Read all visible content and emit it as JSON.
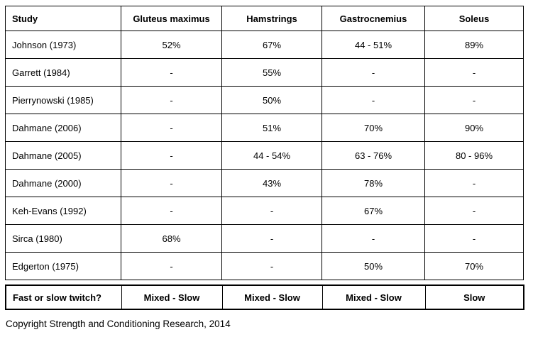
{
  "table": {
    "columns": [
      "Study",
      "Gluteus maximus",
      "Hamstrings",
      "Gastrocnemius",
      "Soleus"
    ],
    "rows": [
      {
        "study": "Johnson (1973)",
        "values": [
          "52%",
          "67%",
          "44 - 51%",
          "89%"
        ]
      },
      {
        "study": "Garrett (1984)",
        "values": [
          "-",
          "55%",
          "-",
          "-"
        ]
      },
      {
        "study": "Pierrynowski (1985)",
        "values": [
          "-",
          "50%",
          "-",
          "-"
        ]
      },
      {
        "study": "Dahmane (2006)",
        "values": [
          "-",
          "51%",
          "70%",
          "90%"
        ]
      },
      {
        "study": "Dahmane (2005)",
        "values": [
          "-",
          "44 - 54%",
          "63 - 76%",
          "80 - 96%"
        ]
      },
      {
        "study": "Dahmane (2000)",
        "values": [
          "-",
          "43%",
          "78%",
          "-"
        ]
      },
      {
        "study": "Keh-Evans (1992)",
        "values": [
          "-",
          "-",
          "67%",
          "-"
        ]
      },
      {
        "study": "Sirca (1980)",
        "values": [
          "68%",
          "-",
          "-",
          "-"
        ]
      },
      {
        "study": "Edgerton (1975)",
        "values": [
          "-",
          "-",
          "50%",
          "70%"
        ]
      }
    ]
  },
  "summary": {
    "label": "Fast or slow twitch?",
    "values": [
      "Mixed - Slow",
      "Mixed - Slow",
      "Mixed - Slow",
      "Slow"
    ]
  },
  "footer": {
    "copyright": "Copyright Strength and Conditioning Research, 2014"
  },
  "colors": {
    "border": "#000000",
    "text": "#000000",
    "background": "#ffffff"
  }
}
